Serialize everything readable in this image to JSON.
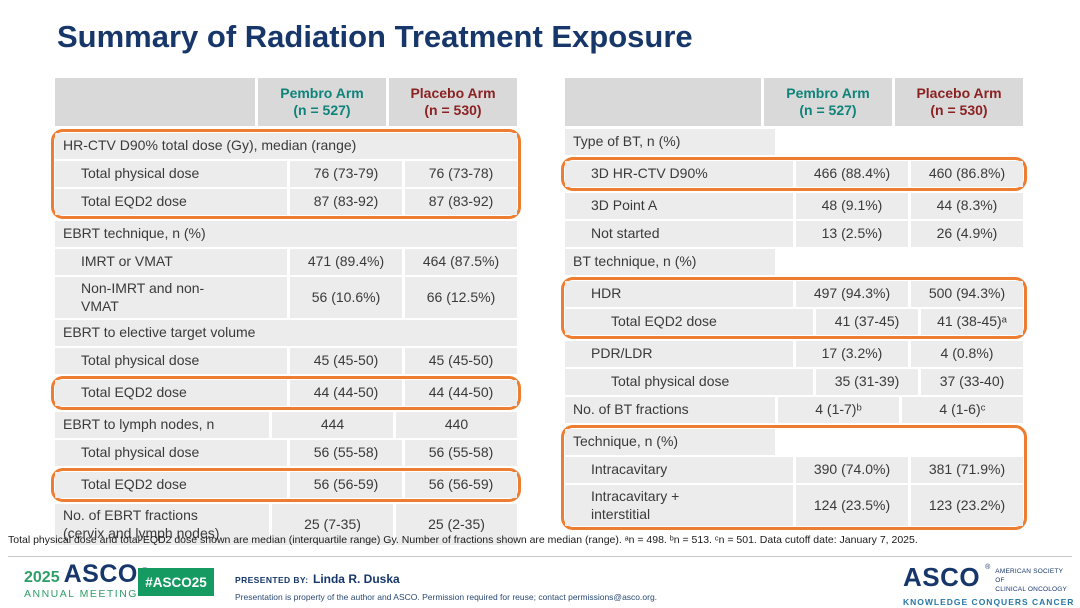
{
  "slide": {
    "title": "Summary of Radiation Treatment Exposure"
  },
  "colors": {
    "title_navy": "#17376B",
    "pembro_teal": "#0E837A",
    "placebo_maroon": "#8B2222",
    "highlight_orange": "#ED7D31",
    "header_gray": "#D9D9D9",
    "row_gray": "#ECECEC",
    "footer_green": "#159A62",
    "tagline_blue": "#2878A8"
  },
  "columns": {
    "pembro": "Pembro Arm\n(n = 527)",
    "placebo": "Placebo Arm\n(n = 530)"
  },
  "tables": [
    {
      "name": "ebrt-exposure",
      "rows": [
        {
          "kind": "section",
          "indent": 0,
          "label": "HR-CTV D90% total dose (Gy), median (range)",
          "group": "g1"
        },
        {
          "kind": "data",
          "indent": 1,
          "label": "Total physical dose",
          "pembro": "76 (73-79)",
          "placebo": "76 (73-78)",
          "group": "g1"
        },
        {
          "kind": "data",
          "indent": 1,
          "label": "Total EQD2 dose",
          "pembro": "87 (83-92)",
          "placebo": "87 (83-92)",
          "group": "g1"
        },
        {
          "kind": "section",
          "indent": 0,
          "label": "EBRT technique, n (%)"
        },
        {
          "kind": "data",
          "indent": 1,
          "label": "IMRT or VMAT",
          "pembro": "471 (89.4%)",
          "placebo": "464 (87.5%)"
        },
        {
          "kind": "data",
          "indent": 1,
          "label": "Non-IMRT and non-\nVMAT",
          "pembro": "56 (10.6%)",
          "placebo": "66 (12.5%)"
        },
        {
          "kind": "section",
          "indent": 0,
          "label": "EBRT to elective target volume"
        },
        {
          "kind": "data",
          "indent": 1,
          "label": "Total physical dose",
          "pembro": "45 (45-50)",
          "placebo": "45 (45-50)"
        },
        {
          "kind": "data",
          "indent": 1,
          "label": "Total EQD2 dose",
          "pembro": "44 (44-50)",
          "placebo": "44 (44-50)",
          "group": "g2"
        },
        {
          "kind": "data",
          "indent": 0,
          "label": "EBRT to lymph nodes, n",
          "pembro": "444",
          "placebo": "440"
        },
        {
          "kind": "data",
          "indent": 1,
          "label": "Total physical dose",
          "pembro": "56 (55-58)",
          "placebo": "56 (55-58)"
        },
        {
          "kind": "data",
          "indent": 1,
          "label": "Total EQD2 dose",
          "pembro": "56 (56-59)",
          "placebo": "56 (56-59)",
          "group": "g3"
        },
        {
          "kind": "data",
          "indent": 0,
          "label": "No. of EBRT fractions\n(cervix and lymph nodes)",
          "pembro": "25 (7-35)",
          "placebo": "25 (2-35)"
        }
      ]
    },
    {
      "name": "bt-exposure",
      "rows": [
        {
          "kind": "section",
          "indent": 0,
          "label": "Type of BT, n (%)"
        },
        {
          "kind": "data",
          "indent": 1,
          "label": "3D HR-CTV D90%",
          "pembro": "466 (88.4%)",
          "placebo": "460 (86.8%)",
          "group": "g4"
        },
        {
          "kind": "data",
          "indent": 1,
          "label": "3D Point A",
          "pembro": "48 (9.1%)",
          "placebo": "44 (8.3%)"
        },
        {
          "kind": "data",
          "indent": 1,
          "label": "Not started",
          "pembro": "13 (2.5%)",
          "placebo": "26 (4.9%)"
        },
        {
          "kind": "section",
          "indent": 0,
          "label": "BT technique, n (%)"
        },
        {
          "kind": "data",
          "indent": 1,
          "label": "HDR",
          "pembro": "497 (94.3%)",
          "placebo": "500 (94.3%)",
          "group": "g5"
        },
        {
          "kind": "data",
          "indent": 2,
          "label": "Total EQD2 dose",
          "pembro": "41 (37-45)",
          "placebo": "41 (38-45)ᵃ",
          "group": "g5"
        },
        {
          "kind": "data",
          "indent": 1,
          "label": "PDR/LDR",
          "pembro": "17 (3.2%)",
          "placebo": "4 (0.8%)"
        },
        {
          "kind": "data",
          "indent": 2,
          "label": "Total physical dose",
          "pembro": "35 (31-39)",
          "placebo": "37 (33-40)"
        },
        {
          "kind": "data",
          "indent": 0,
          "label": "No. of BT fractions",
          "pembro": "4 (1-7)ᵇ",
          "placebo": "4 (1-6)ᶜ"
        },
        {
          "kind": "section",
          "indent": 0,
          "label": "Technique, n (%)",
          "group": "g6"
        },
        {
          "kind": "data",
          "indent": 1,
          "label": "Intracavitary",
          "pembro": "390 (74.0%)",
          "placebo": "381 (71.9%)",
          "group": "g6"
        },
        {
          "kind": "data",
          "indent": 1,
          "label": "Intracavitary +\ninterstitial",
          "pembro": "124 (23.5%)",
          "placebo": "123 (23.2%)",
          "group": "g6"
        }
      ]
    }
  ],
  "footnote": "Total physical dose and total EQD2 dose shown are median (interquartile range) Gy. Number of fractions shown are median (range). ᵃn = 498. ᵇn = 513. ᶜn = 501. Data cutoff date: January 7, 2025.",
  "footer": {
    "meeting": {
      "year": "2025",
      "name": "ASCO",
      "mark": "®",
      "subtitle": "ANNUAL MEETING"
    },
    "hashtag": "#ASCO25",
    "presented_by_label": "PRESENTED BY:",
    "presenter": "Linda R. Duska",
    "permission": "Presentation is property of the author and ASCO. Permission required for reuse; contact permissions@asco.org.",
    "asco_logo": {
      "name": "ASCO",
      "mark": "®",
      "society": "AMERICAN SOCIETY OF\nCLINICAL ONCOLOGY",
      "tagline": "KNOWLEDGE CONQUERS CANCER"
    }
  }
}
